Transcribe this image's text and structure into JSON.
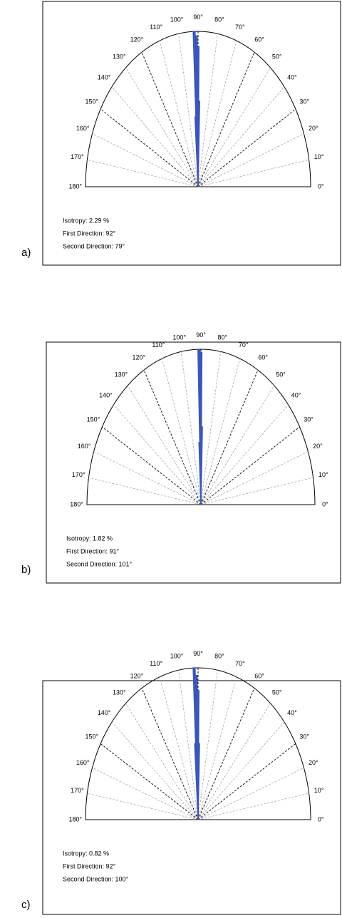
{
  "chart_data": [
    {
      "type": "polar",
      "panel_label": "a)",
      "annotations": [
        "Isotropy: 2.29 %",
        "First Direction: 92°",
        "Second Direction: 79°"
      ],
      "thetalim": [
        0,
        180
      ],
      "rlim": [
        0,
        1
      ],
      "thetaticks": [
        {
          "value": 0,
          "label": "0°"
        },
        {
          "value": 10,
          "label": "10°"
        },
        {
          "value": 20,
          "label": "20°"
        },
        {
          "value": 30,
          "label": "30°"
        },
        {
          "value": 40,
          "label": "40°"
        },
        {
          "value": 50,
          "label": "50°"
        },
        {
          "value": 60,
          "label": "60°"
        },
        {
          "value": 70,
          "label": "70°"
        },
        {
          "value": 80,
          "label": "80°"
        },
        {
          "value": 90,
          "label": "90°"
        },
        {
          "value": 100,
          "label": "100°"
        },
        {
          "value": 110,
          "label": "110°"
        },
        {
          "value": 120,
          "label": "120°"
        },
        {
          "value": 130,
          "label": "130°"
        },
        {
          "value": 140,
          "label": "140°"
        },
        {
          "value": 150,
          "label": "150°"
        },
        {
          "value": 160,
          "label": "160°"
        },
        {
          "value": 170,
          "label": "170°"
        },
        {
          "value": 180,
          "label": "180°"
        }
      ],
      "series": [
        {
          "color": "#3a56b8",
          "theta": [
            89,
            90,
            91,
            92,
            93
          ],
          "values": [
            0.55,
            0.9,
            0.97,
            1.0,
            0.45
          ]
        }
      ]
    },
    {
      "type": "polar",
      "panel_label": "b)",
      "annotations": [
        "Isotropy: 1.82 %",
        "First Direction: 91°",
        "Second Direction: 101°"
      ],
      "thetalim": [
        0,
        180
      ],
      "rlim": [
        0,
        1
      ],
      "thetaticks": [
        {
          "value": 0,
          "label": "0°"
        },
        {
          "value": 10,
          "label": "10°"
        },
        {
          "value": 20,
          "label": "20°"
        },
        {
          "value": 30,
          "label": "30°"
        },
        {
          "value": 40,
          "label": "40°"
        },
        {
          "value": 50,
          "label": "50°"
        },
        {
          "value": 60,
          "label": "60°"
        },
        {
          "value": 70,
          "label": "70°"
        },
        {
          "value": 80,
          "label": "80°"
        },
        {
          "value": 90,
          "label": "90°"
        },
        {
          "value": 100,
          "label": "100°"
        },
        {
          "value": 110,
          "label": "110°"
        },
        {
          "value": 120,
          "label": "120°"
        },
        {
          "value": 130,
          "label": "130°"
        },
        {
          "value": 140,
          "label": "140°"
        },
        {
          "value": 150,
          "label": "150°"
        },
        {
          "value": 160,
          "label": "160°"
        },
        {
          "value": 170,
          "label": "170°"
        },
        {
          "value": 180,
          "label": "180°"
        }
      ],
      "series": [
        {
          "color": "#3a56b8",
          "theta": [
            89,
            90,
            91,
            92
          ],
          "values": [
            0.5,
            0.98,
            1.0,
            0.4
          ]
        }
      ]
    },
    {
      "type": "polar",
      "panel_label": "c)",
      "annotations": [
        "Isotropy: 0.82 %",
        "First Direction: 92°",
        "Second Direction: 100°"
      ],
      "thetalim": [
        0,
        180
      ],
      "rlim": [
        0,
        1
      ],
      "thetaticks": [
        {
          "value": 0,
          "label": "0°"
        },
        {
          "value": 10,
          "label": "10°"
        },
        {
          "value": 20,
          "label": "20°"
        },
        {
          "value": 30,
          "label": "30°"
        },
        {
          "value": 40,
          "label": "40°"
        },
        {
          "value": 50,
          "label": "50°"
        },
        {
          "value": 60,
          "label": "60°"
        },
        {
          "value": 70,
          "label": "70°"
        },
        {
          "value": 80,
          "label": "80°"
        },
        {
          "value": 90,
          "label": "90°"
        },
        {
          "value": 100,
          "label": "100°"
        },
        {
          "value": 110,
          "label": "110°"
        },
        {
          "value": 120,
          "label": "120°"
        },
        {
          "value": 130,
          "label": "130°"
        },
        {
          "value": 140,
          "label": "140°"
        },
        {
          "value": 150,
          "label": "150°"
        },
        {
          "value": 160,
          "label": "160°"
        },
        {
          "value": 170,
          "label": "170°"
        },
        {
          "value": 180,
          "label": "180°"
        }
      ],
      "series": [
        {
          "color": "#3a56b8",
          "theta": [
            89,
            90,
            91,
            92,
            93
          ],
          "values": [
            0.5,
            0.85,
            0.95,
            1.0,
            0.5
          ]
        }
      ]
    }
  ]
}
